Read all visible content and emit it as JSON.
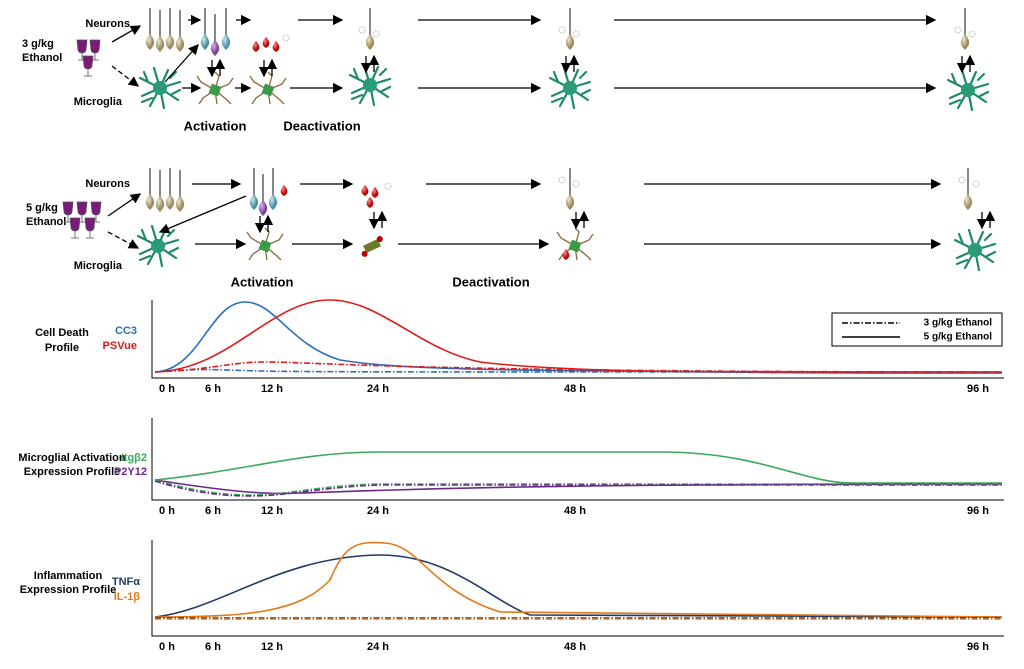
{
  "panel_3g": {
    "dose": [
      "3 g/kg",
      "Ethanol"
    ],
    "neurons": "Neurons",
    "microglia": "Microglia",
    "stages": [
      "Activation",
      "Deactivation"
    ]
  },
  "panel_5g": {
    "dose": [
      "5 g/kg",
      "Ethanol"
    ],
    "neurons": "Neurons",
    "microglia": "Microglia",
    "stages": [
      "Activation",
      "Deactivation"
    ]
  },
  "profiles": [
    {
      "title": [
        "Cell Death",
        "Profile"
      ],
      "legend": [
        "CC3",
        "PSVue"
      ]
    },
    {
      "title": [
        "Microglial Activation",
        "Expression Profile"
      ],
      "legend": [
        "Itgβ2",
        "P2Y12"
      ]
    },
    {
      "title": [
        "Inflammation",
        "Expression Profile"
      ],
      "legend": [
        "TNFα",
        "IL-1β"
      ]
    }
  ],
  "line_legend": [
    "3 g/kg Ethanol",
    "5 g/kg Ethanol"
  ],
  "time_labels": [
    "0 h",
    "6 h",
    "12 h",
    "24 h",
    "48 h",
    "96 h"
  ]
}
